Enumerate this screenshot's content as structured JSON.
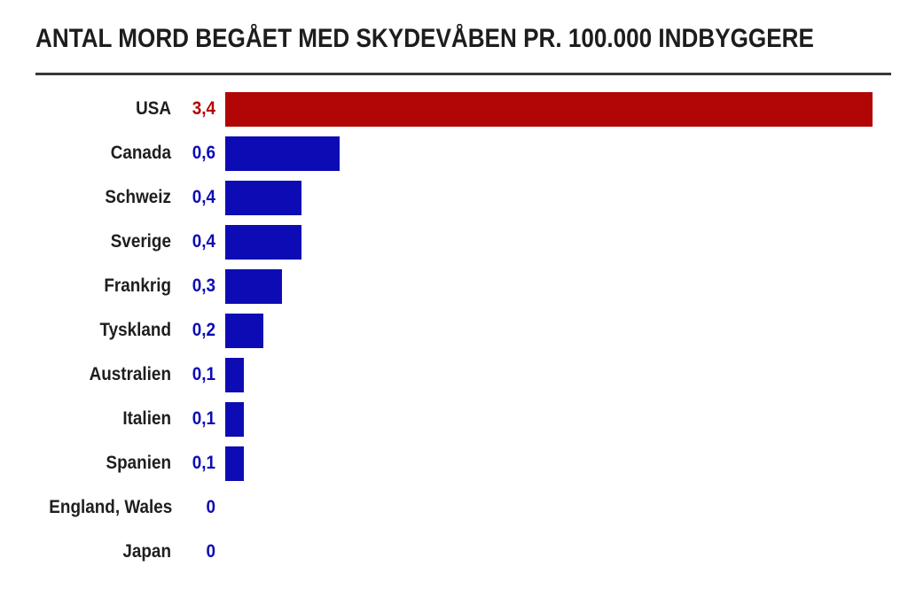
{
  "header": {
    "title": "ANTAL MORD BEGÅET MED SKYDEVÅBEN PR. 100.000 INDBYGGERE"
  },
  "colors": {
    "highlight_bar": "#b20606",
    "default_bar": "#0d0cb4",
    "title_text": "#1d1d1d",
    "category_text": "#1e1e1e",
    "divider": "#383838",
    "background": "#ffffff"
  },
  "chart_data": {
    "type": "bar",
    "orientation": "horizontal",
    "title": "ANTAL MORD BEGÅET MED SKYDEVÅBEN PR. 100.000 INDBYGGERE",
    "categories": [
      "USA",
      "Canada",
      "Schweiz",
      "Sverige",
      "Frankrig",
      "Tyskland",
      "Australien",
      "Italien",
      "Spanien",
      "England, Wales",
      "Japan"
    ],
    "values": [
      3.4,
      0.6,
      0.4,
      0.4,
      0.3,
      0.2,
      0.1,
      0.1,
      0.1,
      0,
      0
    ],
    "value_labels": [
      "3,4",
      "0,6",
      "0,4",
      "0,4",
      "0,3",
      "0,2",
      "0,1",
      "0,1",
      "0,1",
      "0",
      "0"
    ],
    "bar_colors": [
      "#b20606",
      "#0d0cb4",
      "#0d0cb4",
      "#0d0cb4",
      "#0d0cb4",
      "#0d0cb4",
      "#0d0cb4",
      "#0d0cb4",
      "#0d0cb4",
      "#0d0cb4",
      "#0d0cb4"
    ],
    "xlabel": "",
    "ylabel": "",
    "xlim": [
      0,
      3.4
    ],
    "grid": false,
    "legend": false,
    "value_label_position": "left-of-bar",
    "unit": "mord pr. 100.000 indbyggere"
  }
}
